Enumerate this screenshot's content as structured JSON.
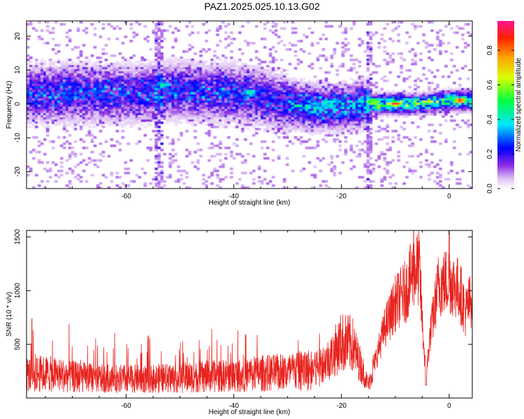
{
  "title": "PAZ1.2025.025.10.13.G02",
  "chart_data": [
    {
      "type": "heatmap",
      "xlabel": "Height of straight line (km)",
      "ylabel": "Frequency (Hz)",
      "xlim": [
        -78.5,
        4.3
      ],
      "ylim": [
        -25,
        24.5
      ],
      "xticks": [
        -60,
        -40,
        -20,
        0
      ],
      "yticks": [
        -20,
        -10,
        0,
        10,
        20
      ],
      "colorbar": {
        "label": "Normalized spectral amplitude",
        "range": [
          0,
          0.97
        ],
        "ticks": [
          0.0,
          0.2,
          0.4,
          0.6,
          0.8
        ],
        "colors": [
          "#ffffff",
          "#ddbff5",
          "#8a2be2",
          "#0000ff",
          "#00e5ff",
          "#00ff44",
          "#d8ff00",
          "#ffa500",
          "#ff2000",
          "#ff1493"
        ]
      },
      "ridge": [
        {
          "x": -78,
          "y": 3
        },
        {
          "x": -70,
          "y": 3
        },
        {
          "x": -60,
          "y": 3
        },
        {
          "x": -50,
          "y": 4
        },
        {
          "x": -40,
          "y": 3
        },
        {
          "x": -35,
          "y": 2
        },
        {
          "x": -30,
          "y": 0
        },
        {
          "x": -25,
          "y": -1
        },
        {
          "x": -20,
          "y": -1
        },
        {
          "x": -15,
          "y": 0
        },
        {
          "x": -10,
          "y": 0
        },
        {
          "x": -5,
          "y": 0
        },
        {
          "x": 0,
          "y": 1
        },
        {
          "x": 4,
          "y": 1
        }
      ],
      "peaks": [
        {
          "x": -53,
          "y": 5.5,
          "amp": 0.45
        },
        {
          "x": -37,
          "y": 3.5,
          "amp": 0.5
        },
        {
          "x": -10,
          "y": 0,
          "amp": 0.95
        },
        {
          "x": 2,
          "y": 1,
          "amp": 0.95
        },
        {
          "x": -14,
          "y": 1,
          "amp": 0.6
        },
        {
          "x": -4,
          "y": 0.5,
          "amp": 0.65
        }
      ],
      "vertical_streaks": [
        -15,
        -54
      ],
      "grid": false
    },
    {
      "type": "line",
      "xlabel": "Height of straight line (km)",
      "ylabel": "SNR (10 * v/v)",
      "xlim": [
        -78.5,
        4.3
      ],
      "ylim": [
        0,
        1560
      ],
      "xticks": [
        -60,
        -40,
        -20,
        0
      ],
      "yticks": [
        500,
        1000,
        1500
      ],
      "color": "#e8231e",
      "grid": false,
      "envelope": [
        {
          "x": -78.0,
          "y": 220
        },
        {
          "x": -75.0,
          "y": 230
        },
        {
          "x": -70.0,
          "y": 200
        },
        {
          "x": -65.0,
          "y": 180
        },
        {
          "x": -60.0,
          "y": 180
        },
        {
          "x": -55.0,
          "y": 180
        },
        {
          "x": -50.0,
          "y": 190
        },
        {
          "x": -45.0,
          "y": 200
        },
        {
          "x": -40.0,
          "y": 210
        },
        {
          "x": -35.0,
          "y": 230
        },
        {
          "x": -30.0,
          "y": 240
        },
        {
          "x": -25.0,
          "y": 270
        },
        {
          "x": -22.0,
          "y": 380
        },
        {
          "x": -20.0,
          "y": 520
        },
        {
          "x": -18.0,
          "y": 500
        },
        {
          "x": -16.0,
          "y": 250
        },
        {
          "x": -15.0,
          "y": 120
        },
        {
          "x": -14.0,
          "y": 300
        },
        {
          "x": -12.0,
          "y": 650
        },
        {
          "x": -10.0,
          "y": 880
        },
        {
          "x": -8.0,
          "y": 1000
        },
        {
          "x": -6.5,
          "y": 1200
        },
        {
          "x": -5.5,
          "y": 1200
        },
        {
          "x": -5.0,
          "y": 700
        },
        {
          "x": -4.3,
          "y": 200
        },
        {
          "x": -3.5,
          "y": 600
        },
        {
          "x": -2.0,
          "y": 1050
        },
        {
          "x": 0.0,
          "y": 1100
        },
        {
          "x": 2.0,
          "y": 1000
        },
        {
          "x": 3.0,
          "y": 800
        },
        {
          "x": 4.3,
          "y": 950
        }
      ],
      "peaks": [
        {
          "x": -77.5,
          "y": 740
        },
        {
          "x": -6.6,
          "y": 1560
        },
        {
          "x": 0.0,
          "y": 1560
        }
      ],
      "minimum": {
        "x": -4.3,
        "y": 120
      }
    }
  ]
}
